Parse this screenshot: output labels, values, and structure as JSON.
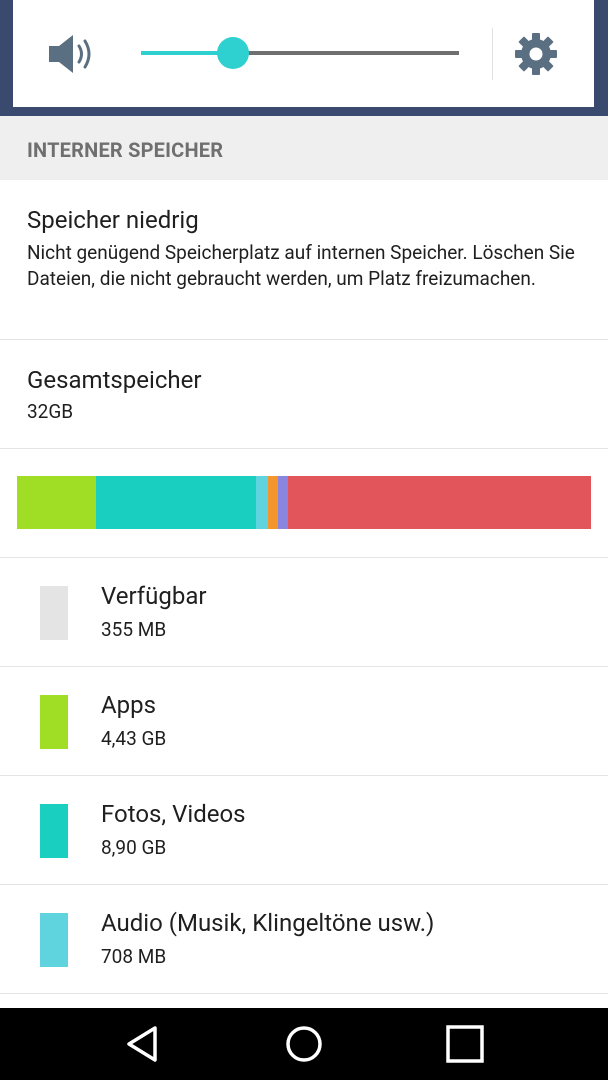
{
  "colors": {
    "accent": "#2fd0d0",
    "available": "#e4e4e4",
    "apps": "#9fde24",
    "photos": "#19cfc0",
    "audio": "#5fd3de",
    "orange": "#f2962d",
    "purple": "#8a86e0",
    "red": "#e2565b"
  },
  "volume": {
    "level": 0.29,
    "speaker_icon": "volume-icon",
    "settings_icon": "gear-icon"
  },
  "section": {
    "header": "INTERNER SPEICHER"
  },
  "low_storage": {
    "title": "Speicher niedrig",
    "message": "Nicht genügend Speicherplatz auf internen Speicher. Löschen Sie Dateien, die nicht gebraucht werden, um Platz freizumachen."
  },
  "total": {
    "title": "Gesamtspeicher",
    "value": "32GB"
  },
  "usage_bar": [
    {
      "name": "apps",
      "fraction": 0.138,
      "color": "#9fde24"
    },
    {
      "name": "photos",
      "fraction": 0.278,
      "color": "#19cfc0"
    },
    {
      "name": "audio",
      "fraction": 0.022,
      "color": "#5fd3de"
    },
    {
      "name": "other-orange",
      "fraction": 0.017,
      "color": "#f2962d"
    },
    {
      "name": "other-purple",
      "fraction": 0.017,
      "color": "#8a86e0"
    },
    {
      "name": "other-red",
      "fraction": 0.528,
      "color": "#e2565b"
    }
  ],
  "categories": [
    {
      "label": "Verfügbar",
      "size": "355 MB",
      "color": "#e4e4e4"
    },
    {
      "label": "Apps",
      "size": "4,43 GB",
      "color": "#9fde24"
    },
    {
      "label": "Fotos, Videos",
      "size": "8,90 GB",
      "color": "#19cfc0"
    },
    {
      "label": "Audio (Musik, Klingeltöne usw.)",
      "size": "708 MB",
      "color": "#5fd3de"
    }
  ],
  "navbar": {
    "back_icon": "back-icon",
    "home_icon": "home-icon",
    "recents_icon": "recents-icon"
  }
}
